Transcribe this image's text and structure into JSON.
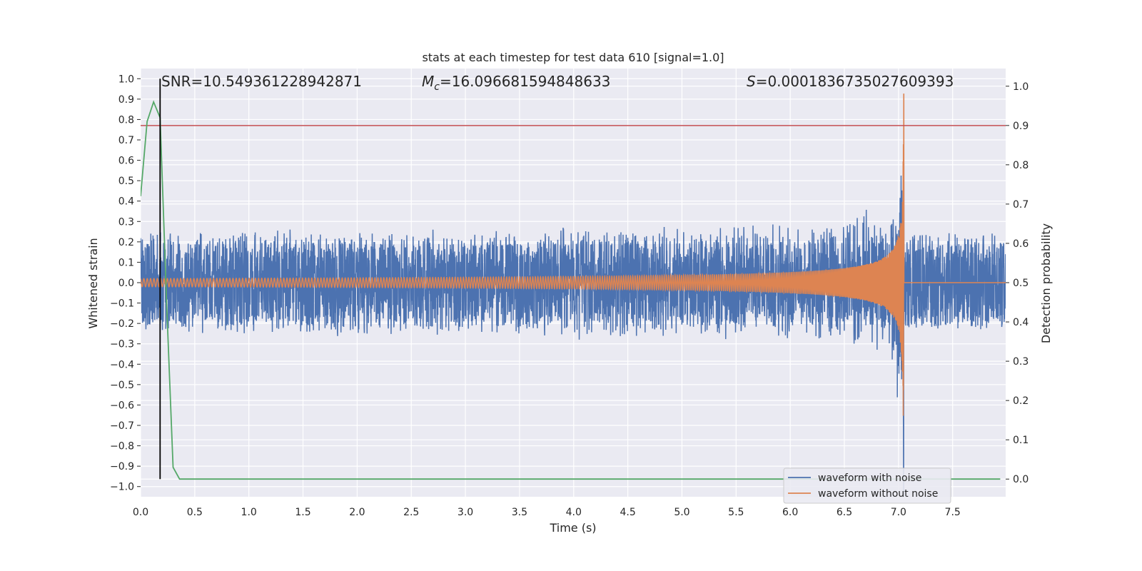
{
  "chart_data": {
    "type": "line",
    "title": "stats at each timestep for test data 610 [signal=1.0]",
    "xlabel": "Time (s)",
    "ylabel": "Whitened strain",
    "y2label": "Detection probability",
    "xlim": [
      0.0,
      7.99
    ],
    "ylim": [
      -1.05,
      1.05
    ],
    "y2lim": [
      -0.045,
      1.045
    ],
    "x_ticks": [
      0.0,
      0.5,
      1.0,
      1.5,
      2.0,
      2.5,
      3.0,
      3.5,
      4.0,
      4.5,
      5.0,
      5.5,
      6.0,
      6.5,
      7.0,
      7.5
    ],
    "y_ticks": [
      -1.0,
      -0.9,
      -0.8,
      -0.7,
      -0.6,
      -0.5,
      -0.4,
      -0.3,
      -0.2,
      -0.1,
      0.0,
      0.1,
      0.2,
      0.3,
      0.4,
      0.5,
      0.6,
      0.7,
      0.8,
      0.9,
      1.0
    ],
    "y2_ticks": [
      0.0,
      0.1,
      0.2,
      0.3,
      0.4,
      0.5,
      0.6,
      0.7,
      0.8,
      0.9,
      1.0
    ],
    "x_tick_labels": [
      "0.0",
      "0.5",
      "1.0",
      "1.5",
      "2.0",
      "2.5",
      "3.0",
      "3.5",
      "4.0",
      "4.5",
      "5.0",
      "5.5",
      "6.0",
      "6.5",
      "7.0",
      "7.5"
    ],
    "y_tick_labels": [
      "−1.0",
      "−0.9",
      "−0.8",
      "−0.7",
      "−0.6",
      "−0.5",
      "−0.4",
      "−0.3",
      "−0.2",
      "−0.1",
      "0.0",
      "0.1",
      "0.2",
      "0.3",
      "0.4",
      "0.5",
      "0.6",
      "0.7",
      "0.8",
      "0.9",
      "1.0"
    ],
    "y2_tick_labels": [
      "0.0",
      "0.1",
      "0.2",
      "0.3",
      "0.4",
      "0.5",
      "0.6",
      "0.7",
      "0.8",
      "0.9",
      "1.0"
    ],
    "grid": true,
    "legend_position": "lower-right",
    "annotations": {
      "snr": "SNR=10.549361228942871",
      "mc": "=16.096681594848633",
      "s": "=0.0001836735027609393"
    },
    "threshold": {
      "value": 0.9,
      "axis": "right",
      "color": "#c44e52"
    },
    "detection_time": 0.18,
    "merger_time": 7.05,
    "noise_band": {
      "low": -0.22,
      "high": 0.22
    },
    "series": [
      {
        "name": "waveform with noise",
        "color": "#4c72b0",
        "axis": "left"
      },
      {
        "name": "waveform without noise",
        "color": "#dd8452",
        "axis": "left"
      },
      {
        "color": "#55a868",
        "axis": "right",
        "x": [
          0.0,
          0.06,
          0.12,
          0.18,
          0.24,
          0.3,
          0.36,
          0.42,
          7.94
        ],
        "values": [
          0.72,
          0.91,
          0.96,
          0.92,
          0.45,
          0.03,
          0.0,
          0.0,
          0.0
        ]
      }
    ],
    "colors": {
      "background": "#eaeaf2",
      "grid": "#ffffff",
      "noise": "#4c72b0",
      "clean": "#dd8452",
      "prob": "#55a868",
      "threshold": "#c44e52",
      "detection_line": "#000000"
    }
  }
}
